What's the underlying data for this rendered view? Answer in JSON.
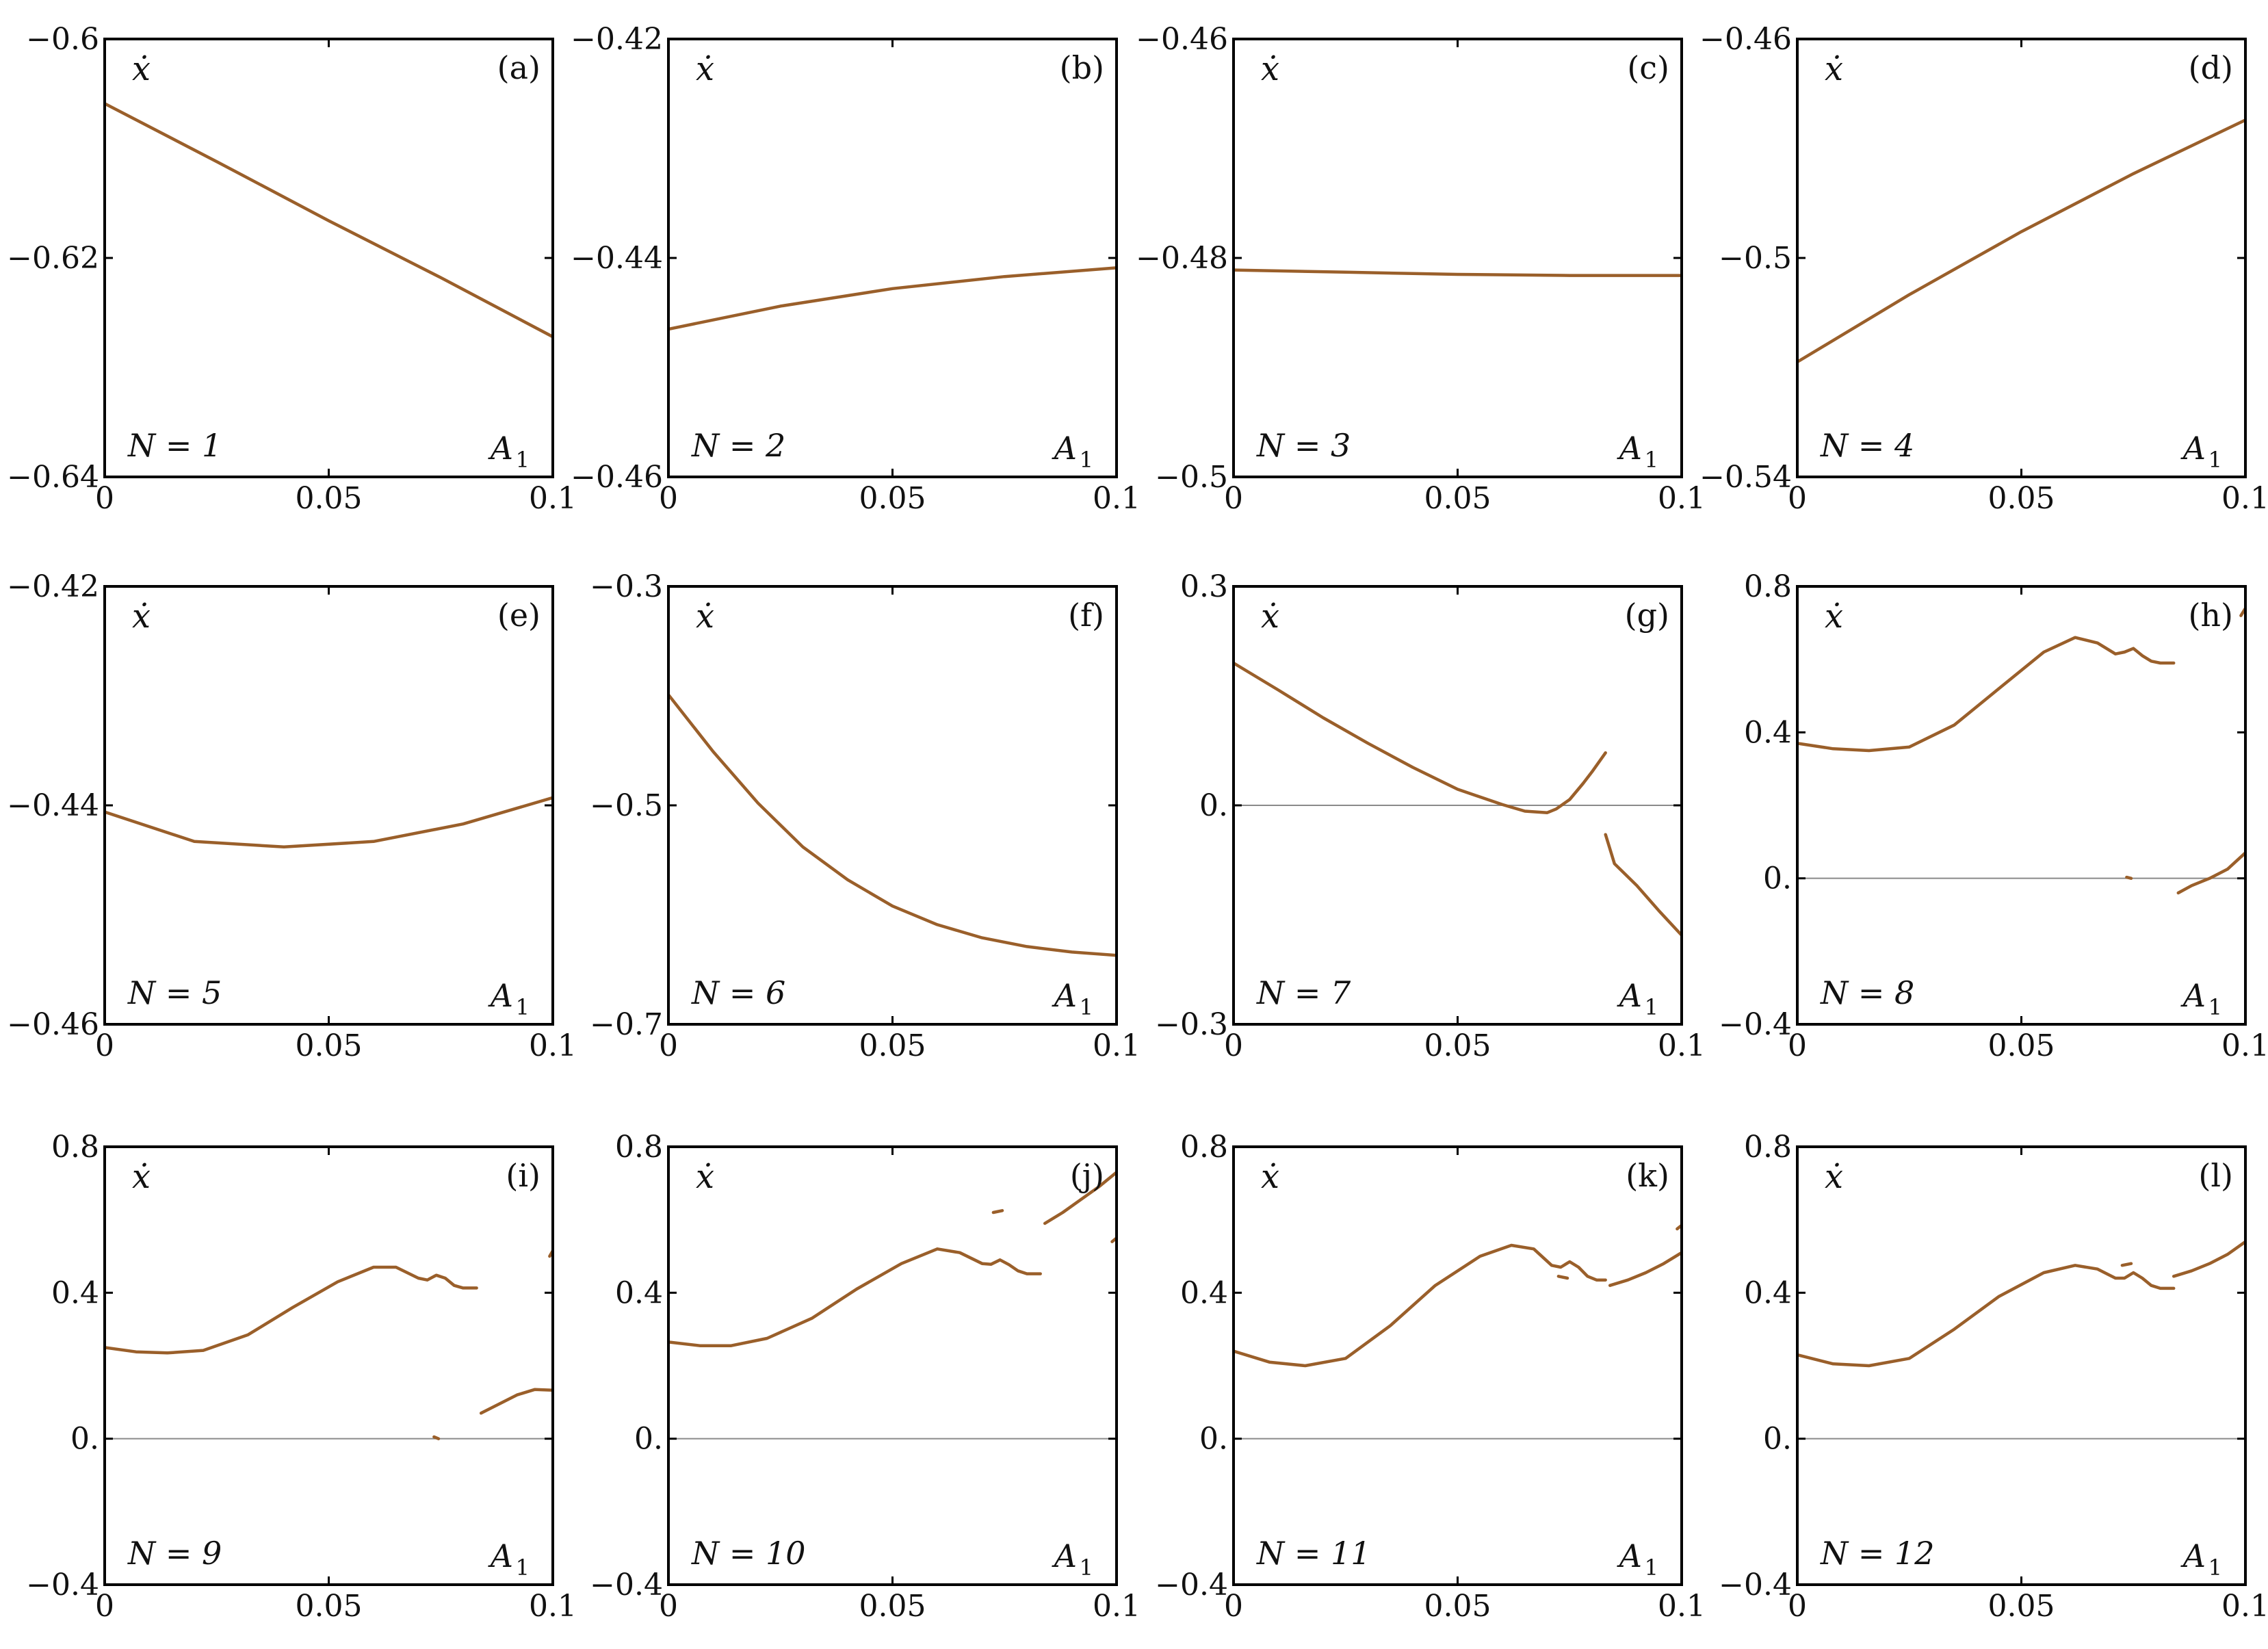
{
  "figure": {
    "curve_color": "#9a5f2a"
  },
  "chart_data": [
    {
      "type": "line",
      "panel_label": "(a)",
      "n_label": "N = 1",
      "xlabel": "A",
      "xlabel_sub": "1",
      "ylabel": "ẋ",
      "xlim": [
        0,
        0.1
      ],
      "ylim": [
        -0.64,
        -0.6
      ],
      "x_ticks": [
        {
          "value": 0,
          "label": "0"
        },
        {
          "value": 0.05,
          "label": "0.05"
        },
        {
          "value": 0.1,
          "label": "0.1"
        }
      ],
      "y_ticks": [
        {
          "value": -0.6,
          "label": "−0.6"
        },
        {
          "value": -0.62,
          "label": "−0.62"
        },
        {
          "value": -0.64,
          "label": "−0.64"
        }
      ],
      "zero_line": false,
      "series": [
        {
          "name": "branch-1",
          "x": [
            0,
            0.025,
            0.05,
            0.075,
            0.1
          ],
          "y": [
            -0.6059,
            -0.6112,
            -0.6166,
            -0.6218,
            -0.6272
          ]
        }
      ]
    },
    {
      "type": "line",
      "panel_label": "(b)",
      "n_label": "N = 2",
      "xlabel": "A",
      "xlabel_sub": "1",
      "ylabel": "ẋ",
      "xlim": [
        0,
        0.1
      ],
      "ylim": [
        -0.46,
        -0.42
      ],
      "x_ticks": [
        {
          "value": 0,
          "label": "0"
        },
        {
          "value": 0.05,
          "label": "0.05"
        },
        {
          "value": 0.1,
          "label": "0.1"
        }
      ],
      "y_ticks": [
        {
          "value": -0.42,
          "label": "−0.42"
        },
        {
          "value": -0.44,
          "label": "−0.44"
        },
        {
          "value": -0.46,
          "label": "−0.46"
        }
      ],
      "zero_line": false,
      "series": [
        {
          "name": "branch-1",
          "x": [
            0,
            0.025,
            0.05,
            0.075,
            0.1
          ],
          "y": [
            -0.4465,
            -0.4444,
            -0.4428,
            -0.4417,
            -0.4409
          ]
        }
      ]
    },
    {
      "type": "line",
      "panel_label": "(c)",
      "n_label": "N = 3",
      "xlabel": "A",
      "xlabel_sub": "1",
      "ylabel": "ẋ",
      "xlim": [
        0,
        0.1
      ],
      "ylim": [
        -0.5,
        -0.46
      ],
      "x_ticks": [
        {
          "value": 0,
          "label": "0"
        },
        {
          "value": 0.05,
          "label": "0.05"
        },
        {
          "value": 0.1,
          "label": "0.1"
        }
      ],
      "y_ticks": [
        {
          "value": -0.46,
          "label": "−0.46"
        },
        {
          "value": -0.48,
          "label": "−0.48"
        },
        {
          "value": -0.5,
          "label": "−0.5"
        }
      ],
      "zero_line": false,
      "series": [
        {
          "name": "branch-1",
          "x": [
            0,
            0.025,
            0.05,
            0.075,
            0.1
          ],
          "y": [
            -0.4811,
            -0.4813,
            -0.4815,
            -0.4816,
            -0.4816
          ]
        }
      ]
    },
    {
      "type": "line",
      "panel_label": "(d)",
      "n_label": "N = 4",
      "xlabel": "A",
      "xlabel_sub": "1",
      "ylabel": "ẋ",
      "xlim": [
        0,
        0.1
      ],
      "ylim": [
        -0.54,
        -0.46
      ],
      "x_ticks": [
        {
          "value": 0,
          "label": "0"
        },
        {
          "value": 0.05,
          "label": "0.05"
        },
        {
          "value": 0.1,
          "label": "0.1"
        }
      ],
      "y_ticks": [
        {
          "value": -0.46,
          "label": "−0.46"
        },
        {
          "value": -0.5,
          "label": "−0.5"
        },
        {
          "value": -0.54,
          "label": "−0.54"
        }
      ],
      "zero_line": false,
      "series": [
        {
          "name": "branch-1",
          "x": [
            0,
            0.025,
            0.05,
            0.075,
            0.1
          ],
          "y": [
            -0.519,
            -0.5067,
            -0.4952,
            -0.4846,
            -0.4748
          ]
        }
      ]
    },
    {
      "type": "line",
      "panel_label": "(e)",
      "n_label": "N = 5",
      "xlabel": "A",
      "xlabel_sub": "1",
      "ylabel": "ẋ",
      "xlim": [
        0,
        0.1
      ],
      "ylim": [
        -0.46,
        -0.42
      ],
      "x_ticks": [
        {
          "value": 0,
          "label": "0"
        },
        {
          "value": 0.05,
          "label": "0.05"
        },
        {
          "value": 0.1,
          "label": "0.1"
        }
      ],
      "y_ticks": [
        {
          "value": -0.42,
          "label": "−0.42"
        },
        {
          "value": -0.44,
          "label": "−0.44"
        },
        {
          "value": -0.46,
          "label": "−0.46"
        }
      ],
      "zero_line": false,
      "series": [
        {
          "name": "branch-1",
          "x": [
            0,
            0.02,
            0.04,
            0.06,
            0.08,
            0.1
          ],
          "y": [
            -0.4406,
            -0.4433,
            -0.4438,
            -0.4433,
            -0.4417,
            -0.4393
          ]
        }
      ]
    },
    {
      "type": "line",
      "panel_label": "(f)",
      "n_label": "N = 6",
      "xlabel": "A",
      "xlabel_sub": "1",
      "ylabel": "ẋ",
      "xlim": [
        0,
        0.1
      ],
      "ylim": [
        -0.7,
        -0.3
      ],
      "x_ticks": [
        {
          "value": 0,
          "label": "0"
        },
        {
          "value": 0.05,
          "label": "0.05"
        },
        {
          "value": 0.1,
          "label": "0.1"
        }
      ],
      "y_ticks": [
        {
          "value": -0.3,
          "label": "−0.3"
        },
        {
          "value": -0.5,
          "label": "−0.5"
        },
        {
          "value": -0.7,
          "label": "−0.7"
        }
      ],
      "zero_line": false,
      "series": [
        {
          "name": "branch-1",
          "x": [
            0,
            0.01,
            0.02,
            0.03,
            0.04,
            0.05,
            0.06,
            0.07,
            0.08,
            0.09,
            0.1
          ],
          "y": [
            -0.399,
            -0.451,
            -0.498,
            -0.538,
            -0.568,
            -0.592,
            -0.609,
            -0.621,
            -0.629,
            -0.634,
            -0.637
          ]
        }
      ]
    },
    {
      "type": "line",
      "panel_label": "(g)",
      "n_label": "N = 7",
      "xlabel": "A",
      "xlabel_sub": "1",
      "ylabel": "ẋ",
      "xlim": [
        0,
        0.1
      ],
      "ylim": [
        -0.3,
        0.3
      ],
      "x_ticks": [
        {
          "value": 0,
          "label": "0"
        },
        {
          "value": 0.05,
          "label": "0.05"
        },
        {
          "value": 0.1,
          "label": "0.1"
        }
      ],
      "y_ticks": [
        {
          "value": 0.3,
          "label": "0.3"
        },
        {
          "value": 0,
          "label": "0."
        },
        {
          "value": -0.3,
          "label": "−0.3"
        }
      ],
      "zero_line": true,
      "series": [
        {
          "name": "branch-1",
          "x": [
            0,
            0.01,
            0.02,
            0.03,
            0.04,
            0.05,
            0.06,
            0.065,
            0.07,
            0.072,
            0.075,
            0.078,
            0.08,
            0.083
          ],
          "y": [
            0.195,
            0.158,
            0.12,
            0.085,
            0.052,
            0.022,
            0.001,
            -0.008,
            -0.01,
            -0.005,
            0.008,
            0.03,
            0.046,
            0.072
          ]
        },
        {
          "name": "branch-2",
          "x": [
            0.083,
            0.085,
            0.09,
            0.095,
            0.1
          ],
          "y": [
            -0.04,
            -0.08,
            -0.11,
            -0.145,
            -0.178
          ]
        }
      ]
    },
    {
      "type": "line",
      "panel_label": "(h)",
      "n_label": "N = 8",
      "xlabel": "A",
      "xlabel_sub": "1",
      "ylabel": "ẋ",
      "xlim": [
        0,
        0.1
      ],
      "ylim": [
        -0.4,
        0.8
      ],
      "x_ticks": [
        {
          "value": 0,
          "label": "0"
        },
        {
          "value": 0.05,
          "label": "0.05"
        },
        {
          "value": 0.1,
          "label": "0.1"
        }
      ],
      "y_ticks": [
        {
          "value": 0.8,
          "label": "0.8"
        },
        {
          "value": 0.4,
          "label": "0.4"
        },
        {
          "value": 0,
          "label": "0."
        },
        {
          "value": -0.4,
          "label": "−0.4"
        }
      ],
      "zero_line": true,
      "series": [
        {
          "name": "branch-1",
          "x": [
            0,
            0.008,
            0.016,
            0.025,
            0.035,
            0.045,
            0.055,
            0.062,
            0.067,
            0.071,
            0.073,
            0.075,
            0.077,
            0.079,
            0.081,
            0.084
          ],
          "y": [
            0.37,
            0.355,
            0.35,
            0.36,
            0.42,
            0.52,
            0.62,
            0.66,
            0.645,
            0.615,
            0.62,
            0.63,
            0.61,
            0.595,
            0.59,
            0.59
          ]
        },
        {
          "name": "branch-2",
          "x": [
            0.085,
            0.088,
            0.092,
            0.096,
            0.1
          ],
          "y": [
            -0.04,
            -0.02,
            0.0,
            0.025,
            0.07
          ]
        },
        {
          "name": "branch-3",
          "x": [
            0.0735,
            0.0745
          ],
          "y": [
            0.003,
            0.0
          ]
        },
        {
          "name": "branch-4",
          "x": [
            0.099,
            0.1
          ],
          "y": [
            0.72,
            0.74
          ]
        }
      ]
    },
    {
      "type": "line",
      "panel_label": "(i)",
      "n_label": "N = 9",
      "xlabel": "A",
      "xlabel_sub": "1",
      "ylabel": "ẋ",
      "xlim": [
        0,
        0.1
      ],
      "ylim": [
        -0.4,
        0.8
      ],
      "x_ticks": [
        {
          "value": 0,
          "label": "0"
        },
        {
          "value": 0.05,
          "label": "0.05"
        },
        {
          "value": 0.1,
          "label": "0.1"
        }
      ],
      "y_ticks": [
        {
          "value": 0.8,
          "label": "0.8"
        },
        {
          "value": 0.4,
          "label": "0.4"
        },
        {
          "value": 0,
          "label": "0."
        },
        {
          "value": -0.4,
          "label": "−0.4"
        }
      ],
      "zero_line": true,
      "series": [
        {
          "name": "branch-1",
          "x": [
            0,
            0.007,
            0.014,
            0.022,
            0.032,
            0.042,
            0.052,
            0.06,
            0.065,
            0.07,
            0.072,
            0.074,
            0.076,
            0.078,
            0.08,
            0.083
          ],
          "y": [
            0.25,
            0.238,
            0.235,
            0.242,
            0.285,
            0.36,
            0.43,
            0.47,
            0.47,
            0.44,
            0.435,
            0.448,
            0.44,
            0.42,
            0.413,
            0.413
          ]
        },
        {
          "name": "branch-2",
          "x": [
            0.084,
            0.088,
            0.092,
            0.096,
            0.1
          ],
          "y": [
            0.07,
            0.095,
            0.12,
            0.135,
            0.133
          ]
        },
        {
          "name": "branch-3",
          "x": [
            0.0735,
            0.0745
          ],
          "y": [
            0.005,
            0.0
          ]
        },
        {
          "name": "branch-4",
          "x": [
            0.0993,
            0.1
          ],
          "y": [
            0.5,
            0.515
          ]
        }
      ]
    },
    {
      "type": "line",
      "panel_label": "(j)",
      "n_label": "N = 10",
      "xlabel": "A",
      "xlabel_sub": "1",
      "ylabel": "ẋ",
      "xlim": [
        0,
        0.1
      ],
      "ylim": [
        -0.4,
        0.8
      ],
      "x_ticks": [
        {
          "value": 0,
          "label": "0"
        },
        {
          "value": 0.05,
          "label": "0.05"
        },
        {
          "value": 0.1,
          "label": "0.1"
        }
      ],
      "y_ticks": [
        {
          "value": 0.8,
          "label": "0.8"
        },
        {
          "value": 0.4,
          "label": "0.4"
        },
        {
          "value": 0,
          "label": "0."
        },
        {
          "value": -0.4,
          "label": "−0.4"
        }
      ],
      "zero_line": true,
      "series": [
        {
          "name": "branch-1",
          "x": [
            0,
            0.007,
            0.014,
            0.022,
            0.032,
            0.042,
            0.052,
            0.06,
            0.065,
            0.07,
            0.072,
            0.074,
            0.076,
            0.078,
            0.08,
            0.083
          ],
          "y": [
            0.265,
            0.255,
            0.255,
            0.275,
            0.33,
            0.41,
            0.48,
            0.52,
            0.51,
            0.48,
            0.478,
            0.49,
            0.477,
            0.46,
            0.452,
            0.452
          ]
        },
        {
          "name": "branch-2",
          "x": [
            0.084,
            0.088,
            0.092,
            0.096,
            0.1
          ],
          "y": [
            0.59,
            0.62,
            0.655,
            0.69,
            0.73
          ]
        },
        {
          "name": "branch-3",
          "x": [
            0.0725,
            0.0745
          ],
          "y": [
            0.62,
            0.625
          ]
        },
        {
          "name": "branch-4",
          "x": [
            0.099,
            0.1
          ],
          "y": [
            0.54,
            0.55
          ]
        }
      ]
    },
    {
      "type": "line",
      "panel_label": "(k)",
      "n_label": "N = 11",
      "xlabel": "A",
      "xlabel_sub": "1",
      "ylabel": "ẋ",
      "xlim": [
        0,
        0.1
      ],
      "ylim": [
        -0.4,
        0.8
      ],
      "x_ticks": [
        {
          "value": 0,
          "label": "0"
        },
        {
          "value": 0.05,
          "label": "0.05"
        },
        {
          "value": 0.1,
          "label": "0.1"
        }
      ],
      "y_ticks": [
        {
          "value": 0.8,
          "label": "0.8"
        },
        {
          "value": 0.4,
          "label": "0.4"
        },
        {
          "value": 0,
          "label": "0."
        },
        {
          "value": -0.4,
          "label": "−0.4"
        }
      ],
      "zero_line": true,
      "series": [
        {
          "name": "branch-1",
          "x": [
            0,
            0.008,
            0.016,
            0.025,
            0.035,
            0.045,
            0.055,
            0.062,
            0.067,
            0.071,
            0.073,
            0.075,
            0.077,
            0.079,
            0.081,
            0.083
          ],
          "y": [
            0.24,
            0.21,
            0.2,
            0.22,
            0.31,
            0.42,
            0.5,
            0.53,
            0.52,
            0.475,
            0.47,
            0.485,
            0.47,
            0.445,
            0.435,
            0.435
          ]
        },
        {
          "name": "branch-2",
          "x": [
            0.084,
            0.088,
            0.092,
            0.096,
            0.1
          ],
          "y": [
            0.42,
            0.435,
            0.455,
            0.48,
            0.51
          ]
        },
        {
          "name": "branch-3",
          "x": [
            0.0725,
            0.0745
          ],
          "y": [
            0.445,
            0.44
          ]
        },
        {
          "name": "branch-4",
          "x": [
            0.099,
            0.1
          ],
          "y": [
            0.575,
            0.585
          ]
        }
      ]
    },
    {
      "type": "line",
      "panel_label": "(l)",
      "n_label": "N = 12",
      "xlabel": "A",
      "xlabel_sub": "1",
      "ylabel": "ẋ",
      "xlim": [
        0,
        0.1
      ],
      "ylim": [
        -0.4,
        0.8
      ],
      "x_ticks": [
        {
          "value": 0,
          "label": "0"
        },
        {
          "value": 0.05,
          "label": "0.05"
        },
        {
          "value": 0.1,
          "label": "0.1"
        }
      ],
      "y_ticks": [
        {
          "value": 0.8,
          "label": "0.8"
        },
        {
          "value": 0.4,
          "label": "0.4"
        },
        {
          "value": 0,
          "label": "0."
        },
        {
          "value": -0.4,
          "label": "−0.4"
        }
      ],
      "zero_line": true,
      "series": [
        {
          "name": "branch-1",
          "x": [
            0,
            0.008,
            0.016,
            0.025,
            0.035,
            0.045,
            0.055,
            0.062,
            0.067,
            0.071,
            0.073,
            0.075,
            0.077,
            0.079,
            0.081,
            0.084
          ],
          "y": [
            0.23,
            0.205,
            0.2,
            0.22,
            0.3,
            0.39,
            0.455,
            0.475,
            0.465,
            0.44,
            0.44,
            0.455,
            0.44,
            0.42,
            0.412,
            0.412
          ]
        },
        {
          "name": "branch-2",
          "x": [
            0.084,
            0.088,
            0.092,
            0.096,
            0.1
          ],
          "y": [
            0.445,
            0.46,
            0.48,
            0.505,
            0.54
          ]
        },
        {
          "name": "branch-3",
          "x": [
            0.0725,
            0.0745
          ],
          "y": [
            0.475,
            0.48
          ]
        }
      ]
    }
  ]
}
